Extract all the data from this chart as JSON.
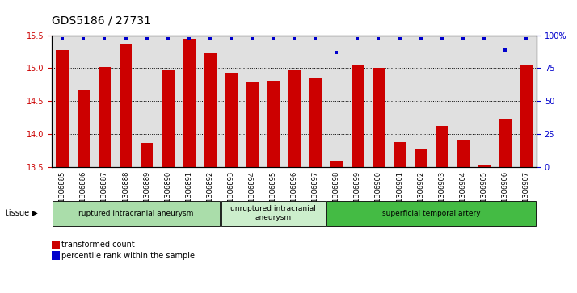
{
  "title": "GDS5186 / 27731",
  "samples": [
    "GSM1306885",
    "GSM1306886",
    "GSM1306887",
    "GSM1306888",
    "GSM1306889",
    "GSM1306890",
    "GSM1306891",
    "GSM1306892",
    "GSM1306893",
    "GSM1306894",
    "GSM1306895",
    "GSM1306896",
    "GSM1306897",
    "GSM1306898",
    "GSM1306899",
    "GSM1306900",
    "GSM1306901",
    "GSM1306902",
    "GSM1306903",
    "GSM1306904",
    "GSM1306905",
    "GSM1306906",
    "GSM1306907"
  ],
  "bar_values": [
    15.28,
    14.68,
    15.02,
    15.37,
    13.87,
    14.97,
    15.45,
    15.22,
    14.93,
    14.8,
    14.81,
    14.97,
    14.85,
    13.6,
    15.05,
    15.0,
    13.88,
    13.78,
    14.12,
    13.9,
    13.52,
    14.22,
    15.05
  ],
  "percentile_values": [
    97,
    97,
    97,
    97,
    97,
    97,
    97,
    97,
    97,
    97,
    97,
    97,
    97,
    87,
    97,
    97,
    97,
    97,
    97,
    97,
    97,
    89,
    97
  ],
  "ylim_left": [
    13.5,
    15.5
  ],
  "ylim_right": [
    0,
    100
  ],
  "yticks_left": [
    13.5,
    14.0,
    14.5,
    15.0,
    15.5
  ],
  "yticks_right": [
    0,
    25,
    50,
    75,
    100
  ],
  "bar_color": "#cc0000",
  "dot_color": "#0000cc",
  "bg_color": "#e0e0e0",
  "plot_bg": "#ffffff",
  "groups": [
    {
      "label": "ruptured intracranial aneurysm",
      "start": 0,
      "end": 8,
      "color": "#aaddaa"
    },
    {
      "label": "unruptured intracranial\naneurysm",
      "start": 8,
      "end": 13,
      "color": "#cceecc"
    },
    {
      "label": "superficial temporal artery",
      "start": 13,
      "end": 23,
      "color": "#44bb44"
    }
  ],
  "group_label_prefix": "tissue ▶",
  "legend_bar_label": "transformed count",
  "legend_dot_label": "percentile rank within the sample",
  "title_fontsize": 10,
  "tick_fontsize": 7
}
